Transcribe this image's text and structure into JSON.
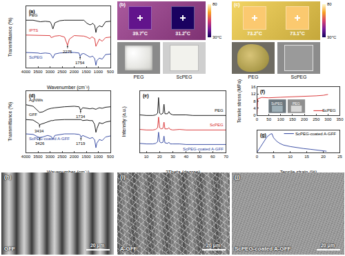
{
  "chart_data": [
    {
      "type": "line",
      "label": "(a)",
      "x_label": "Wavenumber (cm⁻¹)",
      "y_label": "Transmittance (%)",
      "x": [
        4000,
        3700,
        3500,
        3400,
        3200,
        3000,
        2950,
        2880,
        2800,
        2600,
        2400,
        2275,
        2200,
        2000,
        1800,
        1754,
        1700,
        1600,
        1470,
        1350,
        1280,
        1240,
        1150,
        1100,
        1060,
        960,
        840,
        700,
        500
      ],
      "series": [
        {
          "name": "PEG",
          "color": "#000000",
          "values": [
            9.3,
            9.3,
            9.1,
            9.0,
            9.1,
            9.0,
            8.6,
            7.6,
            8.8,
            9.2,
            9.3,
            9.3,
            9.3,
            9.3,
            9.3,
            9.3,
            9.3,
            9.3,
            8.7,
            8.4,
            8.5,
            8.7,
            8.3,
            6.9,
            7.8,
            8.2,
            8.0,
            9.0,
            9.1
          ]
        },
        {
          "name": "IPTS",
          "color": "#d62728",
          "values": [
            6.4,
            6.4,
            6.3,
            6.3,
            6.3,
            6.3,
            5.9,
            6.0,
            6.2,
            6.3,
            6.0,
            4.4,
            5.6,
            6.3,
            6.3,
            6.3,
            6.2,
            6.2,
            6.0,
            5.7,
            6.0,
            6.0,
            5.7,
            4.2,
            4.6,
            5.6,
            5.2,
            5.9,
            6.0
          ]
        },
        {
          "name": "ScPEG",
          "color": "#2a3f9d",
          "values": [
            3.0,
            3.0,
            2.9,
            2.8,
            2.9,
            2.8,
            2.5,
            1.9,
            2.7,
            2.9,
            3.0,
            3.0,
            3.0,
            3.0,
            2.9,
            2.2,
            2.7,
            2.8,
            2.4,
            2.1,
            2.2,
            2.3,
            1.8,
            0.5,
            1.4,
            1.9,
            1.7,
            2.6,
            2.7
          ]
        }
      ],
      "annotations": [
        {
          "text": "2275",
          "x": 2275,
          "series": "IPTS"
        },
        {
          "text": "1754",
          "x": 1754,
          "series": "ScPEG"
        }
      ],
      "xlim": [
        4000,
        500
      ],
      "xticks": [
        4000,
        3500,
        3000,
        2500,
        2000,
        1500,
        1000,
        500
      ],
      "ylim": [
        0,
        12
      ],
      "tick_labels": "x",
      "grid": false,
      "legend": "left"
    },
    {
      "type": "line",
      "label": "(d)",
      "x_label": "Wavenumber (cm⁻¹)",
      "y_label": "Transmittance (%)",
      "x": [
        4000,
        3700,
        3500,
        3434,
        3300,
        3100,
        2950,
        2880,
        2800,
        2400,
        2000,
        1800,
        1734,
        1719,
        1650,
        1470,
        1350,
        1240,
        1150,
        1100,
        1060,
        960,
        840,
        700,
        500
      ],
      "series": [
        {
          "name": "AgNWs",
          "color": "#000000",
          "values": [
            9.3,
            9.0,
            8.1,
            7.8,
            7.9,
            8.4,
            8.6,
            8.6,
            8.7,
            8.9,
            9.0,
            8.9,
            8.2,
            8.3,
            8.7,
            8.6,
            8.5,
            8.6,
            8.5,
            8.4,
            8.5,
            8.7,
            8.6,
            8.8,
            8.9
          ]
        },
        {
          "name": "GFF",
          "color": "#000000",
          "values": [
            6.4,
            6.3,
            5.7,
            5.4,
            5.6,
            6.0,
            6.2,
            6.2,
            6.3,
            6.4,
            6.4,
            6.4,
            6.4,
            6.4,
            6.2,
            6.3,
            6.2,
            6.2,
            5.4,
            3.9,
            4.6,
            5.8,
            5.6,
            5.9,
            6.1
          ]
        },
        {
          "name": "ScPEG-coated A-GFF",
          "color": "#2a3f9d",
          "values": [
            3.6,
            3.5,
            3.0,
            2.9,
            3.0,
            3.3,
            3.1,
            2.6,
            3.3,
            3.6,
            3.6,
            3.5,
            3.3,
            2.9,
            3.3,
            3.0,
            2.7,
            2.9,
            2.4,
            0.9,
            1.8,
            2.5,
            2.3,
            3.0,
            3.2
          ]
        }
      ],
      "annotations": [
        {
          "text": "1734",
          "x": 1734,
          "series": "AgNWs"
        },
        {
          "text": "3434",
          "x": 3434,
          "series": "GFF"
        },
        {
          "text": "3426",
          "x": 3426,
          "series": "ScPEG-coated A-GFF"
        },
        {
          "text": "1719",
          "x": 1719,
          "series": "ScPEG-coated A-GFF"
        }
      ],
      "xlim": [
        4000,
        500
      ],
      "xticks": [
        4000,
        3500,
        3000,
        2500,
        2000,
        1500,
        1000,
        500
      ],
      "ylim": [
        0,
        12
      ],
      "tick_labels": "x",
      "grid": false,
      "legend": "left"
    },
    {
      "type": "line",
      "label": "(e)",
      "x_label": "2Theta (degree)",
      "y_label": "Intensity (a.u.)",
      "x": [
        5,
        10,
        15,
        17,
        18.5,
        19.2,
        20,
        21,
        22.5,
        23.3,
        24,
        26,
        27,
        28,
        30,
        35,
        40,
        45,
        50,
        55,
        60,
        65,
        70
      ],
      "series": [
        {
          "name": "PEG",
          "color": "#000000",
          "values": [
            6.7,
            6.6,
            6.6,
            6.7,
            7.0,
            9.8,
            7.0,
            6.8,
            7.0,
            8.6,
            6.9,
            6.9,
            7.3,
            6.9,
            6.7,
            6.7,
            6.7,
            6.6,
            6.6,
            6.6,
            6.6,
            6.6,
            6.6
          ]
        },
        {
          "name": "ScPEG",
          "color": "#d62728",
          "values": [
            4.1,
            4.0,
            4.0,
            4.1,
            4.4,
            6.3,
            4.4,
            4.2,
            4.3,
            5.4,
            4.2,
            4.2,
            4.4,
            4.1,
            4.0,
            4.1,
            4.0,
            4.0,
            4.0,
            4.0,
            4.0,
            4.0,
            4.0
          ]
        },
        {
          "name": "ScPEG-coated A-GFF",
          "color": "#2a3f9d",
          "values": [
            1.6,
            1.5,
            1.5,
            1.6,
            1.9,
            3.6,
            1.9,
            1.7,
            1.8,
            2.9,
            1.7,
            1.6,
            1.8,
            1.5,
            1.5,
            1.5,
            1.4,
            1.4,
            1.4,
            1.4,
            1.4,
            1.4,
            1.4
          ]
        }
      ],
      "xlim": [
        5,
        70
      ],
      "xticks": [
        10,
        20,
        30,
        40,
        50,
        60,
        70
      ],
      "ylim": [
        0,
        11
      ],
      "tick_labels": "x",
      "grid": false,
      "legend": "right"
    },
    {
      "type": "line",
      "label": "(f)",
      "y_label": "Tensile stress (MPa)",
      "x": [
        0,
        3,
        20,
        50,
        100,
        150,
        200,
        250,
        280,
        300
      ],
      "series": [
        {
          "name": "ScPEG",
          "color": "#d62728",
          "values": [
            0,
            9.3,
            10.1,
            9.9,
            10.2,
            10.4,
            10.7,
            11.0,
            11.3,
            11.8
          ]
        }
      ],
      "insets": [
        "ScPEG",
        "PEG"
      ],
      "xlim": [
        0,
        350
      ],
      "xticks": [
        0,
        50,
        100,
        150,
        200,
        250,
        300,
        350
      ],
      "ylim": [
        0,
        16
      ],
      "yticks": [
        0,
        4,
        8,
        12,
        16
      ],
      "grid": false,
      "legend": "lower right"
    },
    {
      "type": "line",
      "label": "(g)",
      "x_label": "Tensile strain (%)",
      "x": [
        0,
        1,
        2,
        3,
        4,
        4.5,
        5,
        6,
        7,
        8,
        10,
        12,
        14,
        16,
        18,
        20,
        21
      ],
      "series": [
        {
          "name": "ScPEG-coated A-GFF",
          "color": "#2a3f9d",
          "values": [
            0,
            3,
            6,
            8.5,
            10,
            10.3,
            8,
            6,
            4.8,
            4.0,
            3.2,
            2.6,
            2.1,
            1.7,
            1.3,
            0.9,
            0.6
          ]
        }
      ],
      "xlim": [
        0,
        25
      ],
      "xticks": [
        0,
        5,
        10,
        15,
        20,
        25
      ],
      "ylim": [
        0,
        12
      ],
      "tick_labels": "x",
      "grid": false,
      "legend": "upper right"
    }
  ],
  "image_panels": [
    {
      "label": "(b)",
      "type": "thermal",
      "color": "#9a3c8c",
      "spots": [
        {
          "value": 39.7,
          "label": "39.7°C"
        },
        {
          "value": 31.2,
          "label": "31.2°C"
        }
      ],
      "colorbar": {
        "range": [
          30,
          80
        ],
        "ticks": [
          80,
          {
            "value": 30,
            "label": "30°C"
          }
        ]
      },
      "photos": [
        {
          "label": "PEG",
          "type": "rough"
        },
        {
          "label": "ScPEG",
          "type": "frosted"
        }
      ]
    },
    {
      "label": "(c)",
      "type": "thermal",
      "color": "#f0cc48",
      "spots": [
        {
          "value": 73.2,
          "label": "73.2°C"
        },
        {
          "value": 73.1,
          "label": "73.1°C"
        }
      ],
      "colorbar": {
        "range": [
          30,
          80
        ],
        "ticks": [
          80,
          {
            "value": 30,
            "label": "30°C"
          }
        ]
      },
      "photos": [
        {
          "label": "PEG",
          "type": "blob"
        },
        {
          "label": "ScPEG",
          "type": "clear"
        }
      ]
    },
    {
      "label": "(h)",
      "type": "fibers",
      "name": "GFF",
      "scale_bar": "20 μm"
    },
    {
      "label": "(i)",
      "type": "mesh",
      "name": "A-GFF",
      "scale_bar": "20 μm"
    },
    {
      "label": "(j)",
      "type": "film",
      "name": "ScPEG-coated A-GFF",
      "scale_bar": "20 μm"
    }
  ]
}
